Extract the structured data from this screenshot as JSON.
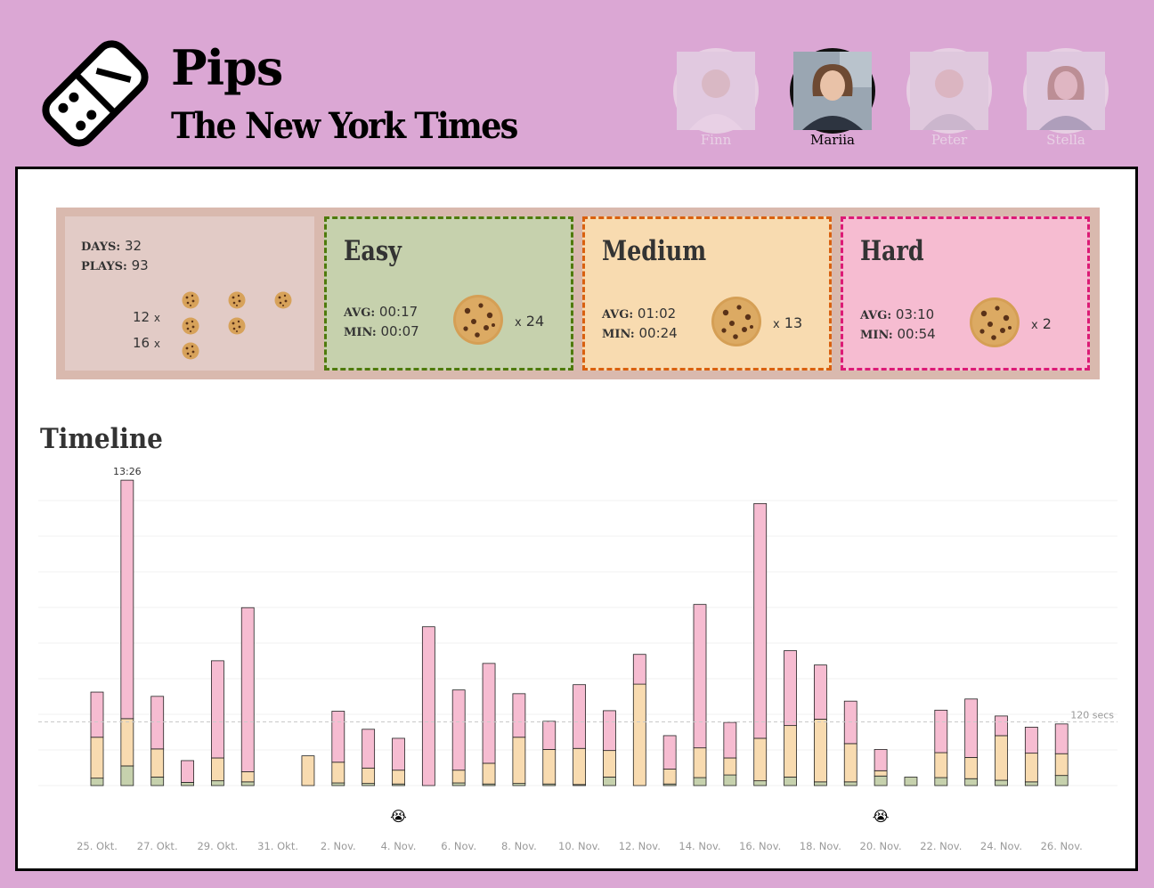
{
  "header": {
    "app_title": "Pips",
    "brand": "The New York Times"
  },
  "users": [
    {
      "name": "Finn",
      "active": false
    },
    {
      "name": "Mariia",
      "active": true
    },
    {
      "name": "Peter",
      "active": false
    },
    {
      "name": "Stella",
      "active": false
    }
  ],
  "summary": {
    "days_label": "DAYS:",
    "days": "32",
    "plays_label": "PLAYS:",
    "plays": "93",
    "count_a": "12",
    "count_b": "16",
    "times": "x"
  },
  "difficulties": {
    "easy": {
      "title": "Easy",
      "avg_label": "AVG:",
      "avg": "00:17",
      "min_label": "MIN:",
      "min": "00:07",
      "times": "x",
      "cookies": "24",
      "color": "#c6d1ad",
      "border": "#4e7a0c"
    },
    "medium": {
      "title": "Medium",
      "avg_label": "AVG:",
      "avg": "01:02",
      "min_label": "MIN:",
      "min": "00:24",
      "times": "x",
      "cookies": "13",
      "color": "#f8dbb0",
      "border": "#d9600f"
    },
    "hard": {
      "title": "Hard",
      "avg_label": "AVG:",
      "avg": "03:10",
      "min_label": "MIN:",
      "min": "00:54",
      "times": "x",
      "cookies": "2",
      "color": "#f6bcd1",
      "border": "#dc1a76"
    }
  },
  "timeline": {
    "title": "Timeline"
  },
  "chart_data": {
    "type": "bar",
    "stacked": true,
    "unit": "seconds",
    "categories": [
      "25. Okt.",
      "26. Okt.",
      "27. Okt.",
      "28. Okt.",
      "29. Okt.",
      "30. Okt.",
      "31. Okt.",
      "1. Nov.",
      "2. Nov.",
      "3. Nov.",
      "4. Nov.",
      "5. Nov.",
      "6. Nov.",
      "7. Nov.",
      "8. Nov.",
      "9. Nov.",
      "10. Nov.",
      "11. Nov.",
      "12. Nov.",
      "13. Nov.",
      "14. Nov.",
      "15. Nov.",
      "16. Nov.",
      "17. Nov.",
      "18. Nov.",
      "19. Nov.",
      "20. Nov.",
      "21. Nov.",
      "22. Nov.",
      "23. Nov.",
      "24. Nov.",
      "25. Nov.",
      "26. Nov."
    ],
    "x_tick_labels": [
      "25. Okt.",
      "27. Okt.",
      "29. Okt.",
      "31. Okt.",
      "2. Nov.",
      "4. Nov.",
      "6. Nov.",
      "8. Nov.",
      "10. Nov.",
      "12. Nov.",
      "14. Nov.",
      "16. Nov.",
      "18. Nov.",
      "20. Nov.",
      "22. Nov.",
      "24. Nov.",
      "26. Nov."
    ],
    "series": [
      {
        "name": "Easy",
        "color": "#c6d1ad",
        "values": [
          14,
          37,
          16,
          6,
          9,
          7,
          0,
          0,
          5,
          4,
          3,
          0,
          5,
          3,
          4,
          3,
          2,
          16,
          0,
          3,
          15,
          20,
          9,
          16,
          7,
          7,
          18,
          16,
          15,
          13,
          10,
          7,
          19
        ]
      },
      {
        "name": "Medium",
        "color": "#f8dbb0",
        "values": [
          77,
          89,
          53,
          0,
          43,
          19,
          0,
          56,
          39,
          29,
          26,
          0,
          24,
          39,
          87,
          65,
          68,
          50,
          191,
          28,
          56,
          32,
          80,
          97,
          118,
          72,
          10,
          0,
          47,
          40,
          84,
          54,
          41
        ]
      },
      {
        "name": "Hard",
        "color": "#f6bcd1",
        "values": [
          85,
          449,
          99,
          41,
          183,
          309,
          0,
          0,
          96,
          73,
          60,
          299,
          151,
          188,
          82,
          53,
          120,
          75,
          56,
          63,
          270,
          67,
          442,
          141,
          102,
          80,
          40,
          0,
          80,
          110,
          37,
          49,
          56
        ]
      }
    ],
    "max_label": "13:26",
    "ymax": 540,
    "reference_line": {
      "value": 120,
      "label": "120 secs"
    },
    "annotations": [
      {
        "category": "4. Nov.",
        "icon": "crying-face-icon",
        "glyph": "😭"
      },
      {
        "category": "20. Nov.",
        "icon": "crying-face-icon",
        "glyph": "😭"
      }
    ]
  }
}
